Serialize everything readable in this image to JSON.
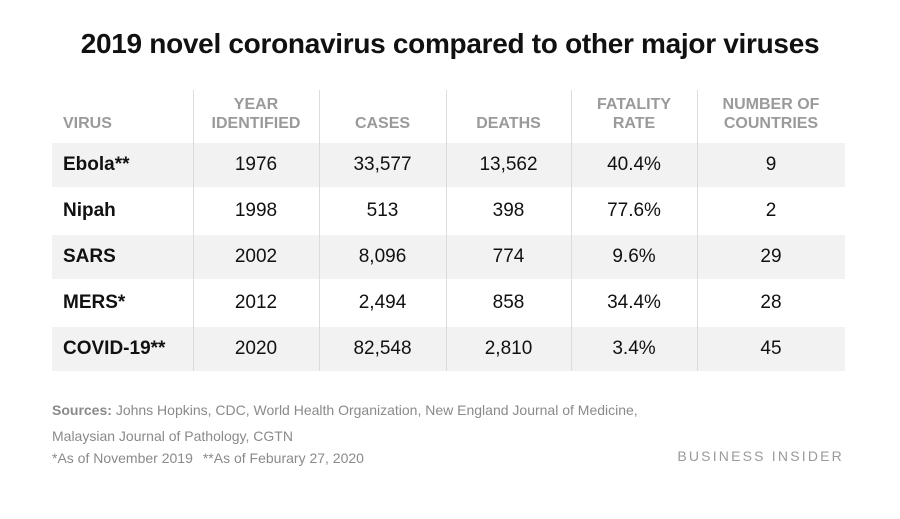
{
  "chart_data": {
    "type": "table",
    "title": "2019 novel coronavirus compared to other major viruses",
    "columns": [
      "VIRUS",
      "YEAR IDENTIFIED",
      "CASES",
      "DEATHS",
      "FATALITY RATE",
      "NUMBER OF COUNTRIES"
    ],
    "header_lines": [
      [
        "VIRUS"
      ],
      [
        "YEAR",
        "IDENTIFIED"
      ],
      [
        "CASES"
      ],
      [
        "DEATHS"
      ],
      [
        "FATALITY",
        "RATE"
      ],
      [
        "NUMBER OF",
        "COUNTRIES"
      ]
    ],
    "rows": [
      [
        "Ebola**",
        "1976",
        "33,577",
        "13,562",
        "40.4%",
        "9"
      ],
      [
        "Nipah",
        "1998",
        "513",
        "398",
        "77.6%",
        "2"
      ],
      [
        "SARS",
        "2002",
        "8,096",
        "774",
        "9.6%",
        "29"
      ],
      [
        "MERS*",
        "2012",
        "2,494",
        "858",
        "34.4%",
        "28"
      ],
      [
        "COVID-19**",
        "2020",
        "82,548",
        "2,810",
        "3.4%",
        "45"
      ]
    ]
  },
  "footer": {
    "sources_label": "Sources:",
    "sources_line1": "Johns Hopkins, CDC, World Health Organization, New England Journal of Medicine,",
    "sources_line2": "Malaysian Journal of Pathology, CGTN",
    "note1": "*As of November 2019",
    "note2": "**As of Feburary 27, 2020",
    "brand": "BUSINESS INSIDER"
  },
  "colors": {
    "shaded_row": "#f2f2f2",
    "header_text": "#9a9a9a",
    "body_text": "#111111",
    "footer_text": "#8a8a8a"
  }
}
